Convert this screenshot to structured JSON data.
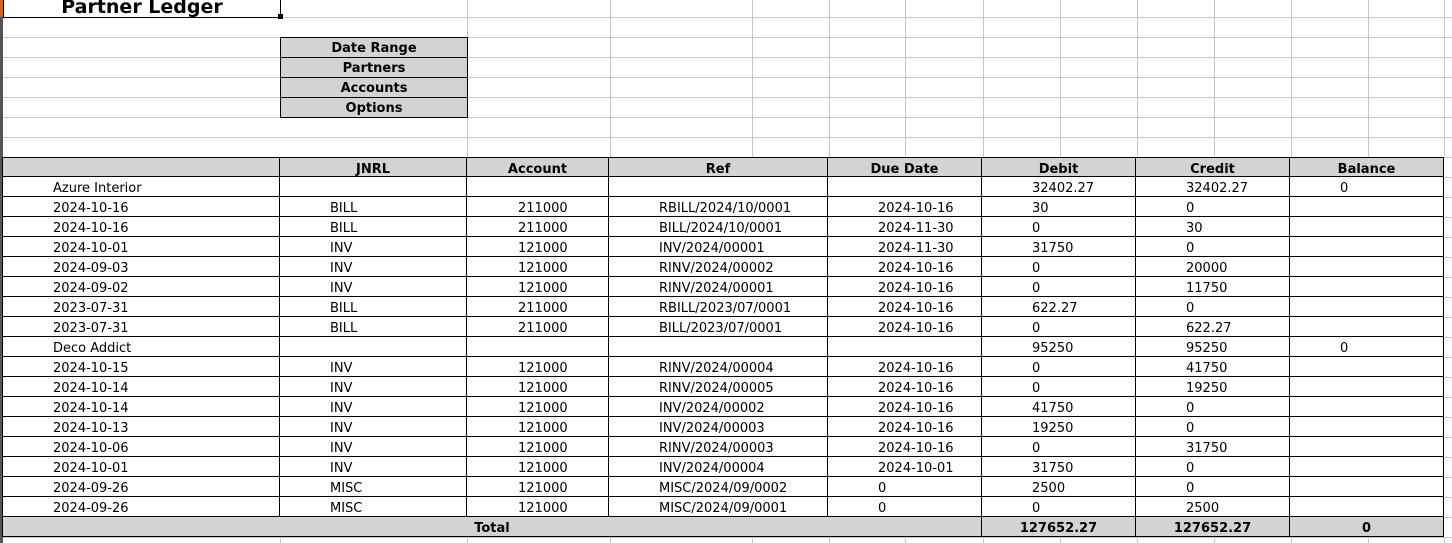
{
  "title": "Partner Ledger",
  "filters": [
    "Date Range",
    "Partners",
    "Accounts",
    "Options"
  ],
  "columns": [
    "",
    "JNRL",
    "Account",
    "Ref",
    "Due Date",
    "Debit",
    "Credit",
    "Balance"
  ],
  "rows": [
    {
      "type": "partner",
      "name": "Azure Interior",
      "debit": "32402.27",
      "credit": "32402.27",
      "balance": "0"
    },
    {
      "type": "line",
      "date": "2024-10-16",
      "jnrl": "BILL",
      "account": "211000",
      "ref": "RBILL/2024/10/0001",
      "due": "2024-10-16",
      "debit": "30",
      "credit": "0"
    },
    {
      "type": "line",
      "date": "2024-10-16",
      "jnrl": "BILL",
      "account": "211000",
      "ref": "BILL/2024/10/0001",
      "due": "2024-11-30",
      "debit": "0",
      "credit": "30"
    },
    {
      "type": "line",
      "date": "2024-10-01",
      "jnrl": "INV",
      "account": "121000",
      "ref": "INV/2024/00001",
      "due": "2024-11-30",
      "debit": "31750",
      "credit": "0"
    },
    {
      "type": "line",
      "date": "2024-09-03",
      "jnrl": "INV",
      "account": "121000",
      "ref": "RINV/2024/00002",
      "due": "2024-10-16",
      "debit": "0",
      "credit": "20000"
    },
    {
      "type": "line",
      "date": "2024-09-02",
      "jnrl": "INV",
      "account": "121000",
      "ref": "RINV/2024/00001",
      "due": "2024-10-16",
      "debit": "0",
      "credit": "11750"
    },
    {
      "type": "line",
      "date": "2023-07-31",
      "jnrl": "BILL",
      "account": "211000",
      "ref": "RBILL/2023/07/0001",
      "due": "2024-10-16",
      "debit": "622.27",
      "credit": "0"
    },
    {
      "type": "line",
      "date": "2023-07-31",
      "jnrl": "BILL",
      "account": "211000",
      "ref": "BILL/2023/07/0001",
      "due": "2024-10-16",
      "debit": "0",
      "credit": "622.27"
    },
    {
      "type": "partner",
      "name": "Deco Addict",
      "debit": "95250",
      "credit": "95250",
      "balance": "0"
    },
    {
      "type": "line",
      "date": "2024-10-15",
      "jnrl": "INV",
      "account": "121000",
      "ref": "RINV/2024/00004",
      "due": "2024-10-16",
      "debit": "0",
      "credit": "41750"
    },
    {
      "type": "line",
      "date": "2024-10-14",
      "jnrl": "INV",
      "account": "121000",
      "ref": "RINV/2024/00005",
      "due": "2024-10-16",
      "debit": "0",
      "credit": "19250"
    },
    {
      "type": "line",
      "date": "2024-10-14",
      "jnrl": "INV",
      "account": "121000",
      "ref": "INV/2024/00002",
      "due": "2024-10-16",
      "debit": "41750",
      "credit": "0"
    },
    {
      "type": "line",
      "date": "2024-10-13",
      "jnrl": "INV",
      "account": "121000",
      "ref": "INV/2024/00003",
      "due": "2024-10-16",
      "debit": "19250",
      "credit": "0"
    },
    {
      "type": "line",
      "date": "2024-10-06",
      "jnrl": "INV",
      "account": "121000",
      "ref": "RINV/2024/00003",
      "due": "2024-10-16",
      "debit": "0",
      "credit": "31750"
    },
    {
      "type": "line",
      "date": "2024-10-01",
      "jnrl": "INV",
      "account": "121000",
      "ref": "INV/2024/00004",
      "due": "2024-10-01",
      "debit": "31750",
      "credit": "0"
    },
    {
      "type": "line",
      "date": "2024-09-26",
      "jnrl": "MISC",
      "account": "121000",
      "ref": "MISC/2024/09/0002",
      "due": "0",
      "debit": "2500",
      "credit": "0"
    },
    {
      "type": "line",
      "date": "2024-09-26",
      "jnrl": "MISC",
      "account": "121000",
      "ref": "MISC/2024/09/0001",
      "due": "0",
      "debit": "0",
      "credit": "2500"
    }
  ],
  "total": {
    "label": "Total",
    "debit": "127652.27",
    "credit": "127652.27",
    "balance": "0"
  },
  "colors": {
    "header_bg": "#d3d3d3",
    "selection": "#e8590c",
    "grid": "#c6c6c6"
  }
}
